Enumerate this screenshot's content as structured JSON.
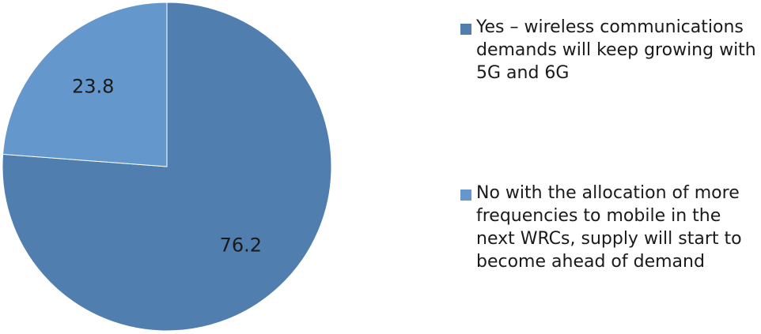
{
  "chart_data": {
    "type": "pie",
    "slices": [
      {
        "label": "Yes – wireless communications demands will keep growing with 5G and 6G",
        "value": 76.2,
        "color": "#4f7eaf"
      },
      {
        "label": "No  with the allocation of more frequencies to mobile in the next WRCs, supply will start to become ahead of demand",
        "value": 23.8,
        "color": "#6497cc"
      }
    ],
    "data_labels": [
      "76.2",
      "23.8"
    ],
    "legend_placement": "right"
  }
}
